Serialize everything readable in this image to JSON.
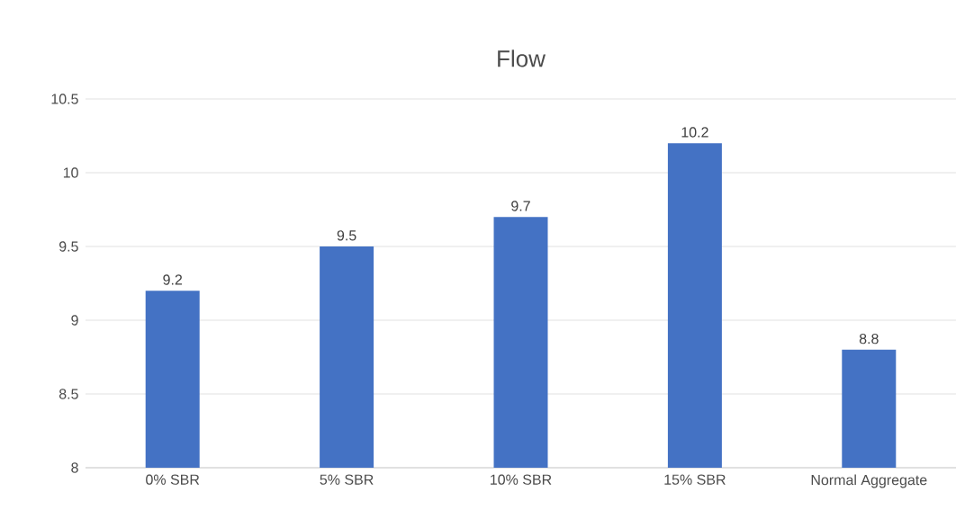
{
  "chart_data": {
    "type": "bar",
    "title": "Flow",
    "categories": [
      "0% SBR",
      "5% SBR",
      "10% SBR",
      "15% SBR",
      "Normal Aggregate"
    ],
    "values": [
      9.2,
      9.5,
      9.7,
      10.2,
      8.8
    ],
    "color": "#4472c4",
    "ylim": [
      8,
      10.5
    ],
    "yticks": [
      8,
      8.5,
      9,
      9.5,
      10,
      10.5
    ],
    "grid": "y",
    "data_labels": true
  }
}
